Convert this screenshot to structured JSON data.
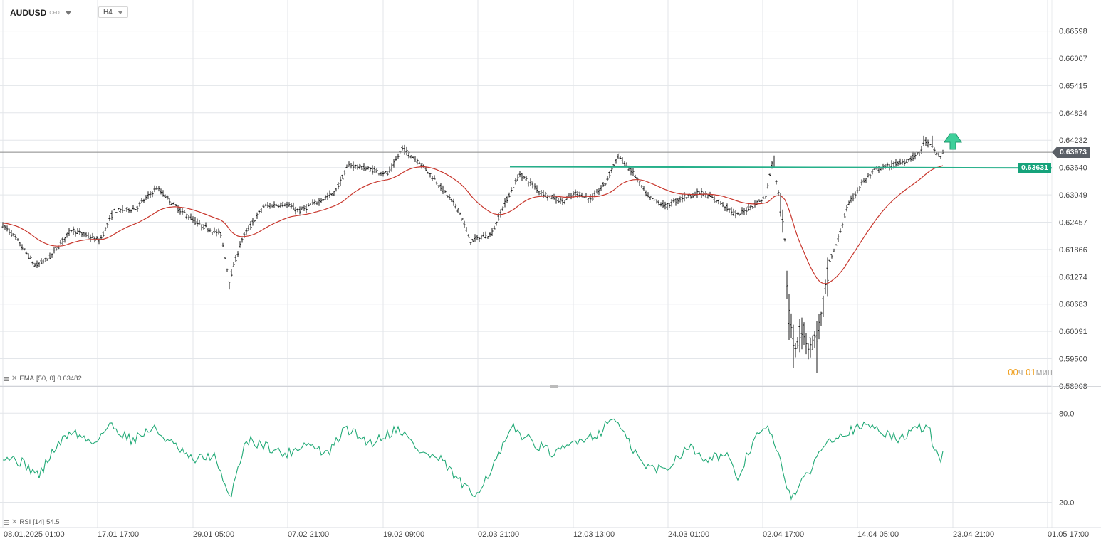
{
  "symbol": {
    "name": "AUDUSD",
    "type": "CFD"
  },
  "timeframe": "H4",
  "indicators": {
    "ema_label": "EMA",
    "ema_params": "[50, 0]",
    "ema_value": "0.63482",
    "rsi_label": "RSI",
    "rsi_params": "[14]",
    "rsi_value": "54.5"
  },
  "timer": {
    "hours": "00",
    "hours_unit": "ч",
    "minutes": "01",
    "minutes_unit": "мин"
  },
  "current_price_label": "0.63973",
  "level_price_label": "0.63631",
  "colors": {
    "price_line": "#888888",
    "level_line": "#26b08a",
    "level_tag": "#16a37b",
    "current_tag": "#5a5f66",
    "ema_line": "#c8372d",
    "rsi_line": "#22aa77",
    "arrow": "#3ecf9a",
    "grid": "#e3e6ea"
  },
  "chart_data": [
    {
      "type": "ohlc",
      "y_axis_ticks": [
        "0.66598",
        "0.66007",
        "0.65415",
        "0.64824",
        "0.64232",
        "0.63640",
        "0.63049",
        "0.62457",
        "0.61866",
        "0.61274",
        "0.60683",
        "0.60091",
        "0.59500",
        "0.58908"
      ],
      "x_axis_ticks": [
        "08.01.2025  01:00",
        "17.01  17:00",
        "29.01  05:00",
        "07.02  21:00",
        "19.02  09:00",
        "02.03  21:00",
        "12.03  13:00",
        "24.03  01:00",
        "02.04  17:00",
        "14.04  05:00",
        "23.04  21:00",
        "01.05  17:00"
      ],
      "ylim": [
        0.58908,
        0.66992
      ],
      "current_price": 0.63973,
      "horizontal_level": 0.63631,
      "ema_period": 50,
      "x": [
        "08.01",
        "17.01",
        "29.01",
        "07.02",
        "19.02",
        "02.03",
        "12.03",
        "24.03",
        "02.04",
        "14.04",
        "21.04"
      ],
      "close_approx": [
        0.624,
        0.62,
        0.614,
        0.631,
        0.639,
        0.622,
        0.6385,
        0.628,
        0.634,
        0.635,
        0.6398
      ],
      "low_approx": [
        0.617,
        0.616,
        0.6095,
        0.624,
        0.634,
        0.6185,
        0.629,
        0.622,
        0.593,
        0.613,
        0.635
      ],
      "high_approx": [
        0.626,
        0.628,
        0.631,
        0.638,
        0.641,
        0.631,
        0.639,
        0.633,
        0.639,
        0.64,
        0.6435
      ],
      "ema_approx": [
        0.625,
        0.6205,
        0.6245,
        0.627,
        0.6355,
        0.63,
        0.632,
        0.6315,
        0.627,
        0.618,
        0.6348
      ]
    },
    {
      "type": "line",
      "name": "RSI [14]",
      "y_axis_ticks": [
        "80.0",
        "20.0"
      ],
      "ylim": [
        3,
        95
      ],
      "x": [
        "08.01",
        "17.01",
        "29.01",
        "07.02",
        "19.02",
        "02.03",
        "12.03",
        "24.03",
        "02.04",
        "09.04",
        "14.04",
        "21.04"
      ],
      "values": [
        52,
        60,
        45,
        56,
        65,
        22,
        72,
        48,
        54,
        24,
        64,
        54.5
      ]
    }
  ]
}
